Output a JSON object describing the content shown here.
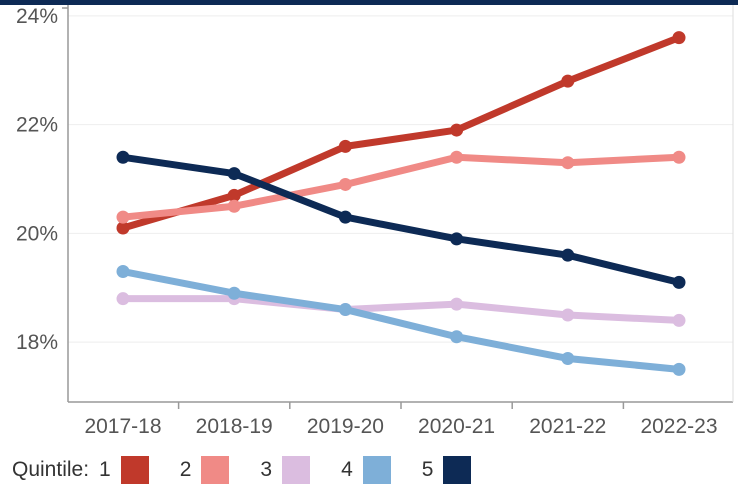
{
  "chart_data": {
    "type": "line",
    "title": "",
    "xlabel": "",
    "ylabel": "",
    "categories": [
      "2017-18",
      "2018-19",
      "2019-20",
      "2020-21",
      "2021-22",
      "2022-23"
    ],
    "ylim": [
      16.9,
      24.2
    ],
    "yticks": [
      18,
      20,
      22,
      24
    ],
    "ytick_labels": [
      "18%",
      "20%",
      "22%",
      "24%"
    ],
    "grid": "horizontal",
    "legend": {
      "title": "Quintile:",
      "placement": "bottom-left"
    },
    "series": [
      {
        "name": "1",
        "color": "#c0392b",
        "values": [
          20.1,
          20.7,
          21.6,
          21.9,
          22.8,
          23.6
        ]
      },
      {
        "name": "2",
        "color": "#f08a86",
        "values": [
          20.3,
          20.5,
          20.9,
          21.4,
          21.3,
          21.4
        ]
      },
      {
        "name": "3",
        "color": "#dbbde0",
        "values": [
          18.8,
          18.8,
          18.6,
          18.7,
          18.5,
          18.4
        ]
      },
      {
        "name": "4",
        "color": "#7eafd8",
        "values": [
          19.3,
          18.9,
          18.6,
          18.1,
          17.7,
          17.5
        ]
      },
      {
        "name": "5",
        "color": "#0d2a55",
        "values": [
          21.4,
          21.1,
          20.3,
          19.9,
          19.6,
          19.1
        ]
      }
    ]
  }
}
